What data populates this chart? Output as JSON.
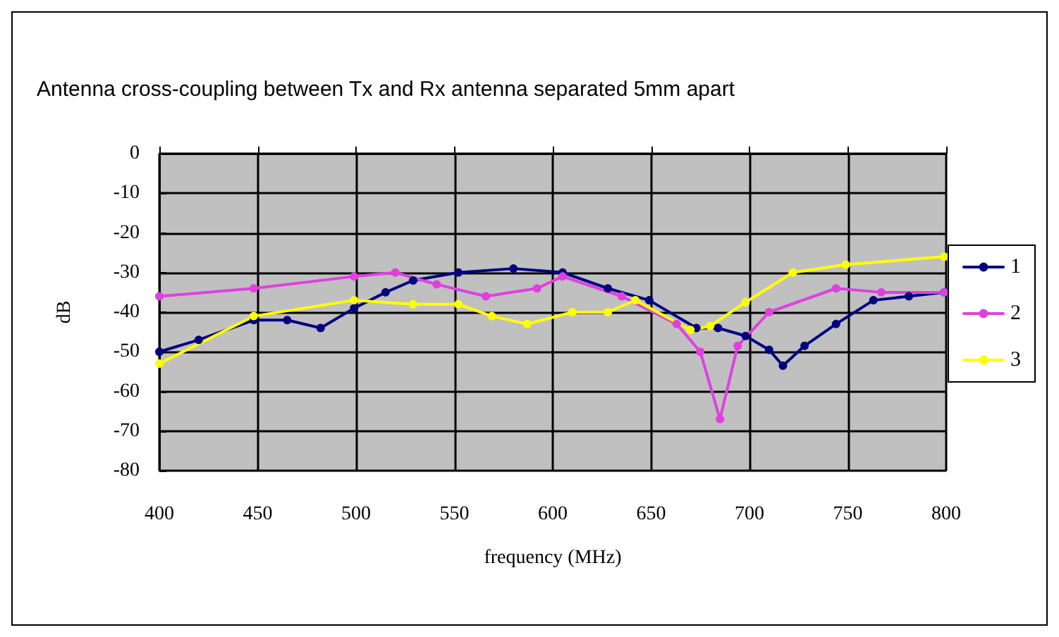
{
  "chart_data": {
    "type": "line",
    "title": "Antenna cross-coupling between Tx and Rx antenna separated 5mm apart",
    "xlabel": "frequency (MHz)",
    "ylabel": "dB",
    "xlim": [
      400,
      800
    ],
    "xticks": [
      400,
      450,
      500,
      550,
      600,
      650,
      700,
      750,
      800
    ],
    "ylim": [
      -80,
      0
    ],
    "yticks": [
      -80,
      -70,
      -60,
      -50,
      -40,
      -30,
      -20,
      -10,
      0
    ],
    "grid": true,
    "legend": "right",
    "marker": "circle",
    "line_style": "solid",
    "series": [
      {
        "name": "1",
        "color": "#000080",
        "x": [
          400,
          420,
          448,
          465,
          482,
          499,
          515,
          529,
          552,
          580,
          605,
          628,
          649,
          673,
          684,
          698,
          710,
          717,
          728,
          744,
          763,
          781,
          799
        ],
        "values": [
          -50,
          -47,
          -42,
          -42,
          -44,
          -39,
          -35,
          -32,
          -30,
          -29,
          -30,
          -34,
          -37,
          -44,
          -44,
          -46,
          -49.5,
          -53.5,
          -48.5,
          -43,
          -37,
          -36,
          -35
        ]
      },
      {
        "name": "2",
        "color": "#e040e0",
        "x": [
          400,
          448,
          499,
          520,
          541,
          566,
          592,
          605,
          635,
          663,
          675,
          685,
          694,
          710,
          744,
          767,
          799
        ],
        "values": [
          -36,
          -34,
          -31,
          -30,
          -33,
          -36,
          -34,
          -31,
          -36,
          -43,
          -50,
          -67,
          -48.5,
          -40,
          -34,
          -35,
          -35
        ]
      },
      {
        "name": "3",
        "color": "#ffff00",
        "x": [
          400,
          448,
          499,
          529,
          552,
          569,
          587,
          610,
          628,
          642,
          670,
          680,
          698,
          722,
          749,
          799
        ],
        "values": [
          -53,
          -41,
          -37,
          -38,
          -38,
          -41,
          -43,
          -40,
          -40,
          -37,
          -44.5,
          -43.5,
          -37.5,
          -30,
          -28,
          -26
        ]
      }
    ]
  }
}
